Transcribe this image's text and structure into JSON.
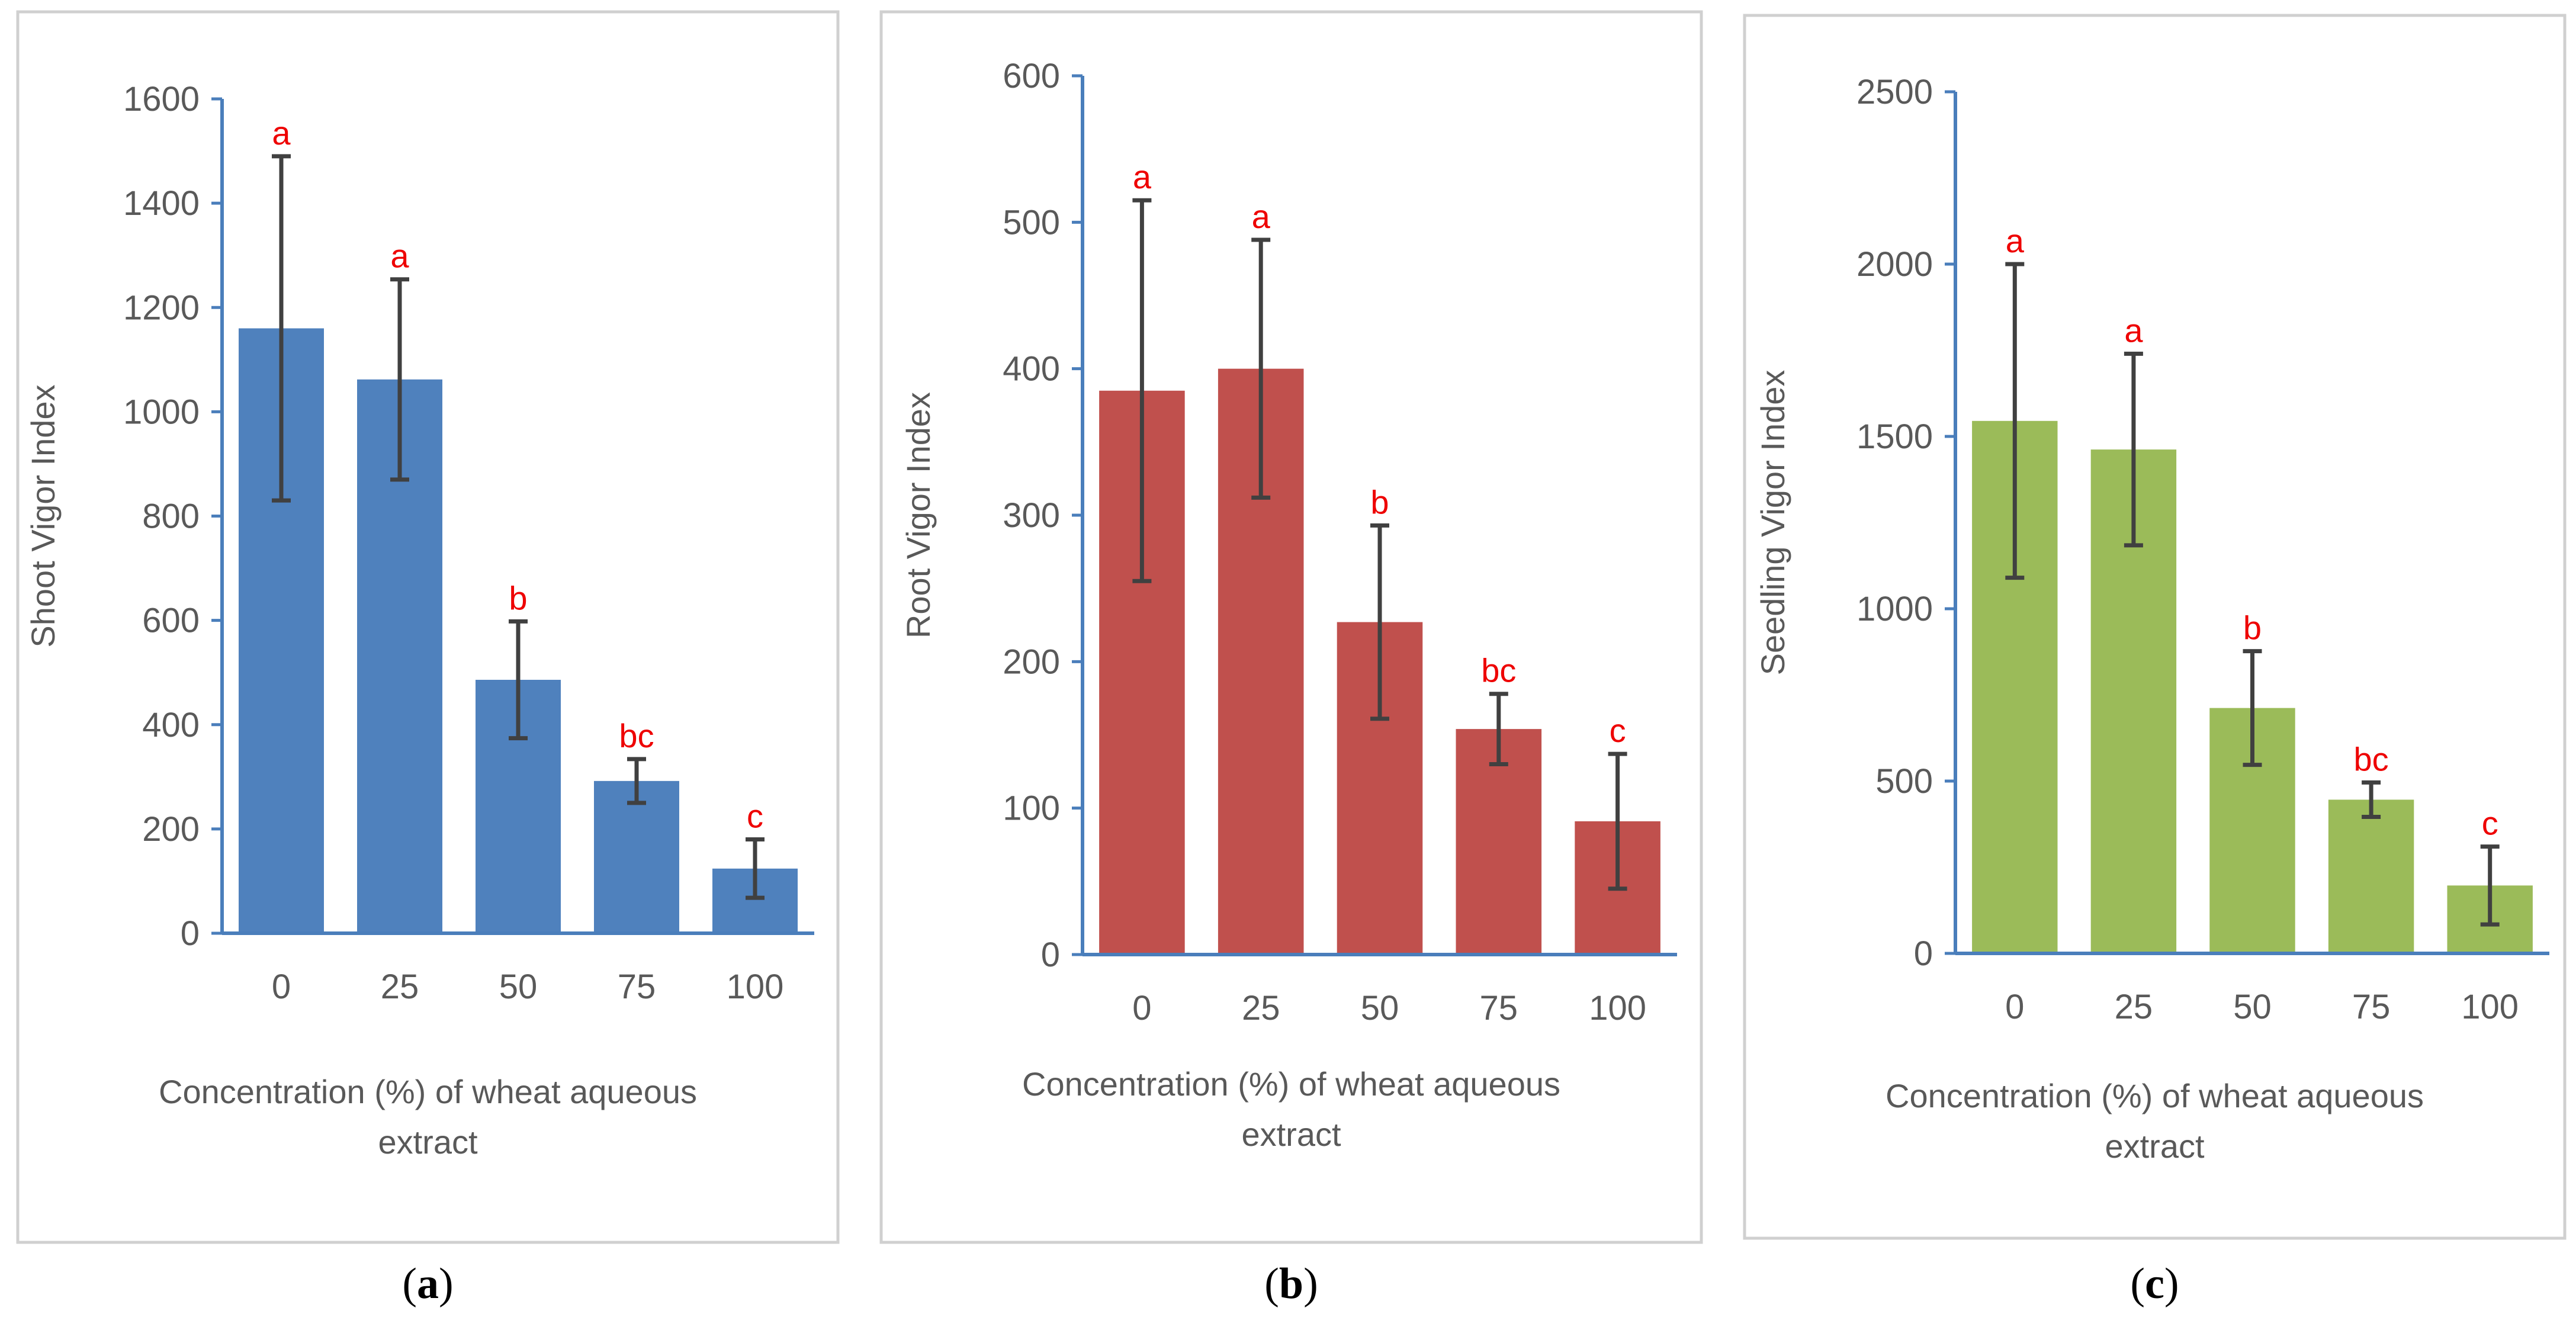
{
  "chart_data": [
    {
      "id": "a",
      "type": "bar",
      "panel_label": "a",
      "ylabel": "Shoot Vigor Index",
      "xlabel_lines": [
        "Concentration (%) of wheat aqueous",
        "extract"
      ],
      "categories": [
        "0",
        "25",
        "50",
        "75",
        "100"
      ],
      "values": [
        1160,
        1062,
        486,
        292,
        124
      ],
      "errors": [
        330,
        192,
        112,
        42,
        56
      ],
      "letters": [
        "a",
        "a",
        "b",
        "bc",
        "c"
      ],
      "ylim": [
        0,
        1600
      ],
      "yticks": [
        0,
        200,
        400,
        600,
        800,
        1000,
        1200,
        1400,
        1600
      ],
      "color": "#4f81bd"
    },
    {
      "id": "b",
      "type": "bar",
      "panel_label": "b",
      "ylabel": "Root Vigor Index",
      "xlabel_lines": [
        "Concentration (%) of wheat aqueous",
        "extract"
      ],
      "categories": [
        "0",
        "25",
        "50",
        "75",
        "100"
      ],
      "values": [
        385,
        400,
        227,
        154,
        91
      ],
      "errors": [
        130,
        88,
        66,
        24,
        46
      ],
      "letters": [
        "a",
        "a",
        "b",
        "bc",
        "c"
      ],
      "ylim": [
        0,
        600
      ],
      "yticks": [
        0,
        100,
        200,
        300,
        400,
        500,
        600
      ],
      "color": "#c0504d"
    },
    {
      "id": "c",
      "type": "bar",
      "panel_label": "c",
      "ylabel": "Seedling Vigor Index",
      "xlabel_lines": [
        "Concentration (%) of wheat aqueous",
        "extract"
      ],
      "categories": [
        "0",
        "25",
        "50",
        "75",
        "100"
      ],
      "values": [
        1545,
        1462,
        712,
        446,
        197
      ],
      "errors": [
        455,
        278,
        165,
        50,
        113
      ],
      "letters": [
        "a",
        "a",
        "b",
        "bc",
        "c"
      ],
      "ylim": [
        0,
        2500
      ],
      "yticks": [
        0,
        500,
        1000,
        1500,
        2000,
        2500
      ],
      "color": "#9bbb59"
    }
  ]
}
